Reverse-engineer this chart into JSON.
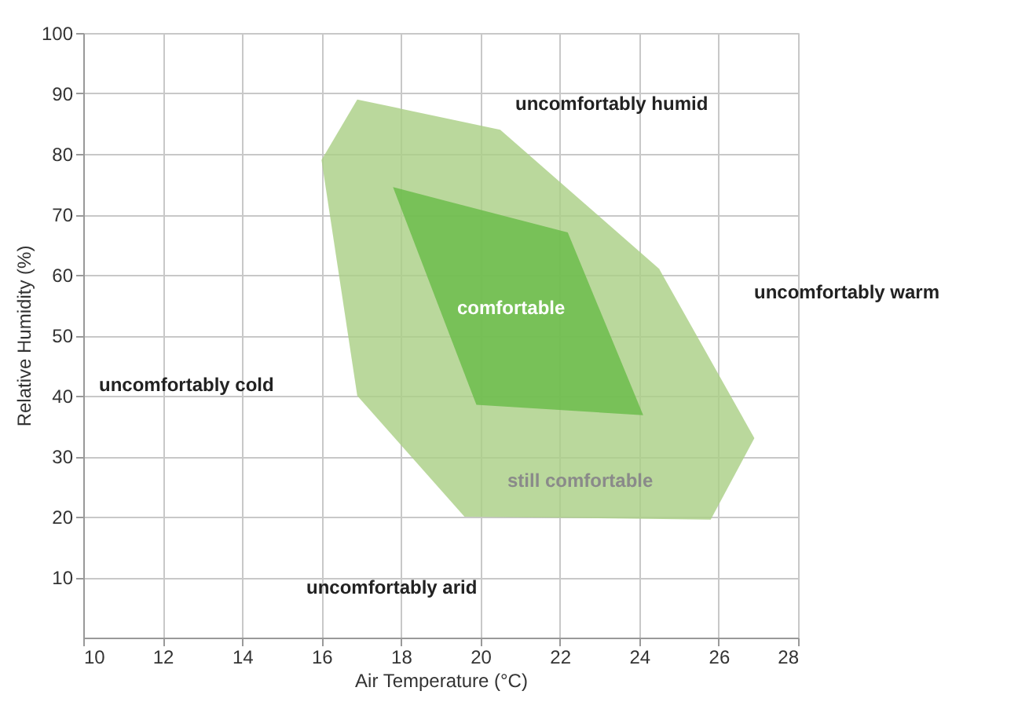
{
  "chart_data": {
    "type": "area",
    "xlabel": "Air Temperature (°C)",
    "ylabel": "Relative Humidity (%)",
    "xlim": [
      10,
      28
    ],
    "xticks": [
      10,
      12,
      14,
      16,
      18,
      20,
      22,
      24,
      26,
      28
    ],
    "ylim": [
      0,
      100
    ],
    "yticks": [
      10,
      20,
      30,
      40,
      50,
      60,
      70,
      80,
      90,
      100
    ],
    "grid": true,
    "series": [
      {
        "color": "#a9cf85",
        "x": [
          16.9,
          20.5,
          24.5,
          26.9,
          25.8,
          19.6,
          16.9,
          16.0,
          16.9
        ],
        "values": [
          89,
          84,
          61,
          33,
          19.5,
          20,
          40,
          79,
          89
        ]
      },
      {
        "color": "#68bb48",
        "x": [
          17.8,
          22.2,
          24.1,
          19.9,
          17.8
        ],
        "values": [
          74.5,
          67,
          36.8,
          38.5,
          74.5
        ]
      }
    ],
    "annotations": [
      "uncomfortably humid",
      "uncomfortably warm",
      "uncomfortably cold",
      "uncomfortably arid",
      "comfortable",
      "still comfortable"
    ]
  }
}
